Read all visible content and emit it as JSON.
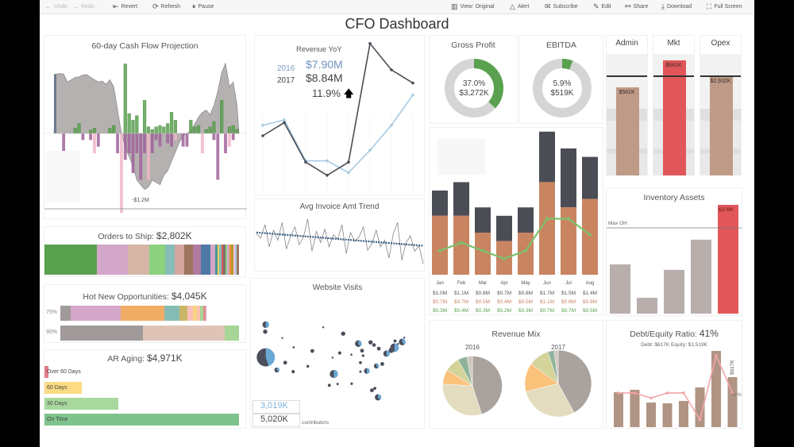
{
  "toolbar": {
    "left": [
      {
        "label": "Undo",
        "icon": "arrow-left-icon",
        "enabled": false
      },
      {
        "label": "Redo",
        "icon": "arrow-right-icon",
        "enabled": false
      },
      {
        "label": "Revert",
        "icon": "revert-icon",
        "enabled": true
      },
      {
        "label": "Refresh",
        "icon": "refresh-icon",
        "enabled": true
      },
      {
        "label": "Pause",
        "icon": "pause-icon",
        "enabled": true
      }
    ],
    "right": [
      {
        "label": "View: Original",
        "icon": "view-icon"
      },
      {
        "label": "Alert",
        "icon": "bell-icon"
      },
      {
        "label": "Subscribe",
        "icon": "mail-icon"
      },
      {
        "label": "Edit",
        "icon": "pencil-icon"
      },
      {
        "label": "Share",
        "icon": "share-icon"
      },
      {
        "label": "Download",
        "icon": "download-icon"
      },
      {
        "label": "Full Screen",
        "icon": "fullscreen-icon"
      }
    ]
  },
  "dashboard_title": "CFO Dashboard",
  "colors": {
    "green": "#59a14f",
    "purple": "#a0649b",
    "pink": "#f1b6c6",
    "gray_area": "#a9a3a3",
    "dark": "#4b4d55",
    "orange": "#c98462",
    "light_blue": "#a7cbe3",
    "red": "#e15759",
    "tan": "#b89a86"
  },
  "chart_data": [
    {
      "id": "cash_flow",
      "type": "bar",
      "title": "60-day Cash Flow Projection",
      "annotation": "-$1.2M",
      "units": "$K",
      "inflows": [
        0,
        0,
        0,
        0,
        0,
        80,
        150,
        0,
        0,
        50,
        80,
        0,
        0,
        0,
        80,
        120,
        0,
        0,
        1050,
        300,
        200,
        270,
        0,
        500,
        100,
        60,
        100,
        120,
        100,
        150,
        320,
        200,
        0,
        0,
        0,
        200,
        100,
        120,
        0,
        60,
        100,
        180,
        0,
        500,
        0,
        100,
        120,
        60
      ],
      "outflows": [
        0,
        0,
        -300,
        0,
        0,
        0,
        0,
        -100,
        0,
        -100,
        -300,
        -200,
        0,
        0,
        0,
        0,
        -300,
        -1200,
        -400,
        -300,
        -600,
        -300,
        -700,
        -300,
        -700,
        -300,
        -100,
        -200,
        0,
        -150,
        -200,
        -100,
        0,
        -200,
        -200,
        0,
        0,
        0,
        -300,
        0,
        0,
        -100,
        -700,
        0,
        -300,
        -200,
        -100,
        0
      ],
      "balance": [
        1270,
        1280,
        1270,
        1100,
        1150,
        1200,
        1210,
        1250,
        1260,
        1200,
        1150,
        1100,
        1120,
        1050,
        1150,
        1000,
        500,
        0,
        -300,
        -500,
        -700,
        -1000,
        -1100,
        -1200,
        -1150,
        -1000,
        -1050,
        -1100,
        -900,
        -800,
        -600,
        -400,
        -200,
        -50,
        0,
        50,
        200,
        350,
        450,
        500,
        400,
        600,
        900,
        1300,
        1500,
        1000,
        1100,
        600
      ]
    },
    {
      "id": "revenue_yoy",
      "type": "line",
      "title": "Revenue YoY",
      "categories": [
        "Jan",
        "Feb",
        "Mar",
        "Apr",
        "May",
        "Jun",
        "Jul",
        "Aug"
      ],
      "series": [
        {
          "name": "2016",
          "values": [
            1.08,
            1.12,
            0.81,
            0.81,
            0.72,
            0.89,
            1.08,
            1.31
          ],
          "color": "#a7cbe3"
        },
        {
          "name": "2017",
          "values": [
            1.0,
            1.1,
            0.8,
            0.7,
            0.8,
            1.7,
            1.5,
            1.4
          ],
          "color": "#4b4d55"
        }
      ],
      "kpi": {
        "y2016_label": "2016",
        "y2016_value": "$7.90M",
        "y2017_label": "2017",
        "y2017_value": "$8.84M",
        "growth": "11.9%",
        "trend": "up"
      }
    },
    {
      "id": "avg_invoice",
      "type": "line",
      "title": "Avg Invoice Amt Trend",
      "values": [
        82,
        78,
        90,
        70,
        85,
        76,
        92,
        68,
        80,
        88,
        72,
        79,
        95,
        66,
        84,
        74,
        86,
        70,
        81,
        77,
        90,
        64,
        83,
        75,
        79,
        88,
        67,
        73,
        85,
        70,
        76,
        60,
        82,
        92,
        58,
        74,
        80,
        66,
        71,
        55
      ],
      "trendline": true
    },
    {
      "id": "website_visits",
      "type": "scatter",
      "title": "Website Visits",
      "fields": [
        "lon",
        "lat",
        "visits_k",
        "share_2016"
      ],
      "points": [
        [
          -122.4,
          47.6,
          120,
          0.5
        ],
        [
          -122.6,
          45.5,
          50,
          0.5
        ],
        [
          -122.4,
          37.8,
          900,
          0.45
        ],
        [
          -118.2,
          34.0,
          70,
          0.4
        ],
        [
          -115.1,
          36.2,
          40,
          0.4
        ],
        [
          -111.9,
          40.8,
          12,
          0.4
        ],
        [
          -104.9,
          39.7,
          40,
          0.4
        ],
        [
          -106.6,
          35.1,
          20,
          0.4
        ],
        [
          -112.1,
          33.5,
          30,
          0.4
        ],
        [
          -116.2,
          43.6,
          8,
          0.4
        ],
        [
          -100.8,
          46.8,
          6,
          0.4
        ],
        [
          -97.3,
          37.7,
          8,
          0.4
        ],
        [
          -96.8,
          32.8,
          180,
          0.5
        ],
        [
          -95.4,
          29.8,
          15,
          0.4
        ],
        [
          -98.5,
          29.4,
          25,
          0.4
        ],
        [
          -94.6,
          39.1,
          30,
          0.4
        ],
        [
          -93.3,
          44.9,
          50,
          0.4
        ],
        [
          -90.2,
          38.6,
          12,
          0.4
        ],
        [
          -87.6,
          41.9,
          120,
          0.4
        ],
        [
          -86.2,
          39.8,
          40,
          0.4
        ],
        [
          -90.1,
          29.9,
          18,
          0.4
        ],
        [
          -86.8,
          33.5,
          15,
          0.4
        ],
        [
          -84.4,
          33.7,
          90,
          0.5
        ],
        [
          -81.7,
          41.5,
          35,
          0.4
        ],
        [
          -83.0,
          42.3,
          50,
          0.4
        ],
        [
          -85.8,
          38.3,
          18,
          0.4
        ],
        [
          -86.8,
          36.2,
          25,
          0.4
        ],
        [
          -80.8,
          35.2,
          70,
          0.4
        ],
        [
          -78.6,
          35.8,
          40,
          0.4
        ],
        [
          -77.0,
          38.9,
          110,
          0.5
        ],
        [
          -75.2,
          39.9,
          80,
          0.4
        ],
        [
          -74.0,
          40.7,
          200,
          0.5
        ],
        [
          -71.1,
          42.4,
          120,
          0.4
        ],
        [
          -73.8,
          42.7,
          25,
          0.4
        ],
        [
          -72.7,
          41.8,
          10,
          0.4
        ],
        [
          -80.2,
          25.8,
          110,
          0.4
        ],
        [
          -82.5,
          27.9,
          40,
          0.4
        ],
        [
          -81.4,
          28.5,
          25,
          0.4
        ],
        [
          -70.3,
          43.7,
          6,
          0.4
        ],
        [
          -79.9,
          40.4,
          40,
          0.4
        ]
      ],
      "totals": {
        "value_2016": "3,019K",
        "value_2017": "5,020K",
        "footnote": "contributors"
      }
    },
    {
      "id": "orders_to_ship",
      "type": "bar",
      "title": "Orders to Ship:",
      "total": "$2,802K",
      "shares": [
        27,
        16,
        11,
        8,
        5,
        5,
        4.5,
        4,
        5,
        2.5,
        1.2,
        1,
        1,
        1,
        1,
        1,
        1,
        1,
        1,
        1,
        1,
        1
      ],
      "colors": [
        "#59a14f",
        "#d4a6c8",
        "#d7b5a6",
        "#8cd17d",
        "#86bcb6",
        "#d4a6a0",
        "#9d7660",
        "#b07aa1",
        "#4e79a7",
        "#d4a6c8",
        "#499894",
        "#f1ce63",
        "#86bcb6",
        "#e15759",
        "#79706e",
        "#8cd17d",
        "#d4a6c8",
        "#f28e2b",
        "#b6992d",
        "#fabfd2",
        "#a0cbe8",
        "#9d7660"
      ]
    },
    {
      "id": "hot_opportunities",
      "type": "bar",
      "title": "Hot New Opportunities:",
      "total": "$4,045K",
      "rows": [
        {
          "label": "75%",
          "extent": 0.82,
          "shares": [
            7,
            33,
            29,
            10,
            5,
            4,
            2.5,
            2,
            2,
            1.5,
            1
          ],
          "colors": [
            "#a09a9a",
            "#d4a6c8",
            "#f1ad65",
            "#86bcb6",
            "#c9b768",
            "#fabfb8",
            "#f5d582",
            "#ffbeb2",
            "#a6d596",
            "#e08f8f",
            "#d4a6c8"
          ]
        },
        {
          "label": "90%",
          "extent": 1.0,
          "shares": [
            46,
            46,
            8
          ],
          "colors": [
            "#a09a9a",
            "#dfc4b6",
            "#a6d596"
          ]
        }
      ]
    },
    {
      "id": "ar_aging",
      "type": "bar",
      "title": "AR Aging:",
      "total": "$4,971K",
      "categories": [
        "Over 60 Days",
        "60 Days",
        "30 Days",
        "On Time"
      ],
      "values": [
        0.02,
        0.19,
        0.38,
        1.0
      ],
      "colors": [
        "#e07b86",
        "#fbdc84",
        "#a8d89e",
        "#7fc38c"
      ]
    },
    {
      "id": "gross_profit",
      "type": "pie",
      "title": "Gross Profit",
      "pct": "37.0%",
      "value": "$3,272K",
      "fraction": 0.37
    },
    {
      "id": "ebitda",
      "type": "pie",
      "title": "EBITDA",
      "pct": "5.9%",
      "value": "$519K",
      "fraction": 0.059
    },
    {
      "id": "monthly",
      "type": "bar",
      "categories": [
        "Jan",
        "Feb",
        "Mar",
        "Apr",
        "May",
        "Jun",
        "Jul",
        "Aug"
      ],
      "revenue": [
        1.0,
        1.1,
        0.8,
        0.7,
        0.8,
        1.7,
        1.5,
        1.4
      ],
      "cost": [
        0.7,
        0.7,
        0.5,
        0.4,
        0.5,
        1.1,
        0.8,
        0.9
      ],
      "profit": [
        0.3,
        0.4,
        0.3,
        0.2,
        0.3,
        0.7,
        0.7,
        0.5
      ],
      "revenue_labels": [
        "$1.0M",
        "$1.1M",
        "$0.8M",
        "$0.7M",
        "$0.8M",
        "$1.7M",
        "$1.5M",
        "$1.4M"
      ],
      "cost_labels": [
        "$0.7M",
        "$0.7M",
        "$0.5M",
        "$0.4M",
        "$0.5M",
        "$1.1M",
        "$0.8M",
        "$0.9M"
      ],
      "profit_labels": [
        "$0.3M",
        "$0.4M",
        "$0.3M",
        "$0.2M",
        "$0.3M",
        "$0.7M",
        "$0.7M",
        "$0.5M"
      ]
    },
    {
      "id": "revenue_mix",
      "type": "pie",
      "title": "Revenue Mix",
      "colors": [
        "#a9a29d",
        "#e3dcbf",
        "#fbc27c",
        "#d3d39a",
        "#8fb39a",
        "#cfc7c0"
      ],
      "pies": [
        {
          "label": "2016",
          "total": 7.9,
          "shares": [
            45,
            31,
            8,
            8,
            5,
            3
          ]
        },
        {
          "label": "2017",
          "total": 8.84,
          "shares": [
            42,
            29,
            14,
            10,
            3,
            2
          ]
        }
      ]
    },
    {
      "id": "expenses",
      "type": "bar",
      "columns": [
        {
          "label": "Admin",
          "value": "$581K",
          "pct_of_budget": 0.88,
          "over": false
        },
        {
          "label": "Mkt",
          "value": "$641K",
          "pct_of_budget": 1.15,
          "over": true
        },
        {
          "label": "Opex",
          "value": "$2,932K",
          "pct_of_budget": 0.99,
          "over": false
        }
      ]
    },
    {
      "id": "inventory",
      "type": "bar",
      "title": "Inventory Assets",
      "values": [
        171,
        55,
        152,
        257,
        378
      ],
      "reference": {
        "label": "Max OH",
        "value": 298
      },
      "highlight_label": "$378K",
      "ylim": [
        0,
        378
      ]
    },
    {
      "id": "debt_equity",
      "type": "bar",
      "title": "Debt/Equity Ratio:",
      "ratio": "41%",
      "subtitle": "Debt: $617K  Equity: $1,519K",
      "debt": [
        431,
        461,
        304,
        294,
        323,
        490,
        941,
        617
      ],
      "ratio_series": [
        41,
        41,
        35,
        41,
        41,
        9,
        86,
        41
      ],
      "last_debt_label": "$617K",
      "last_ratio_label": "41%"
    }
  ]
}
